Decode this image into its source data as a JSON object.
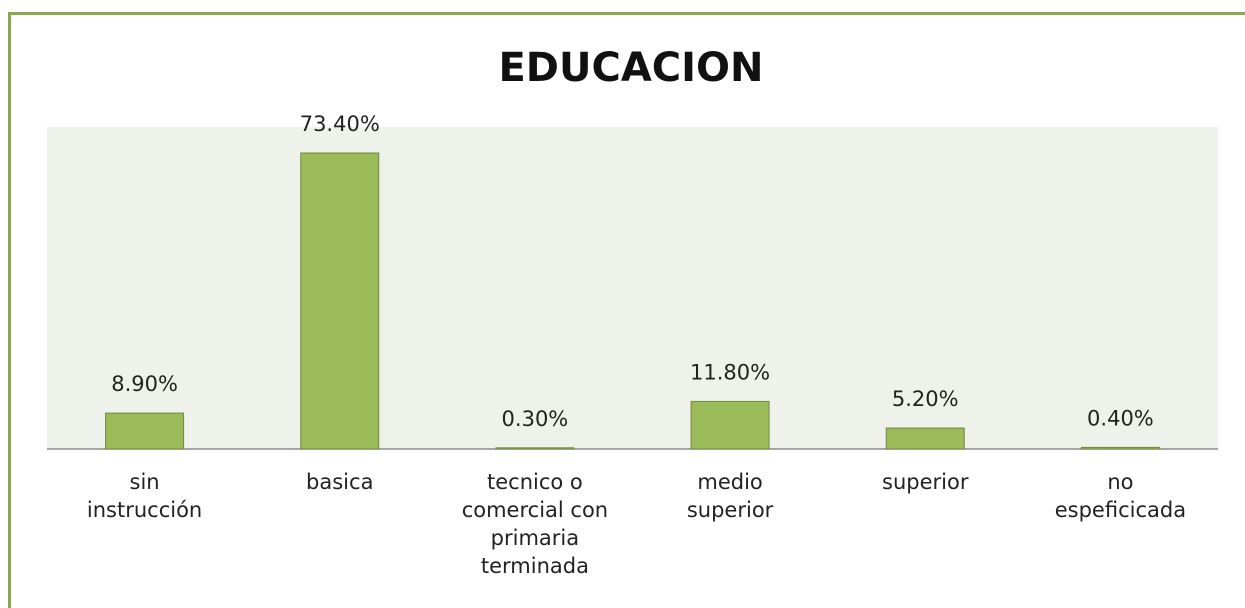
{
  "chart_data": {
    "type": "bar",
    "title": "EDUCACION",
    "categories": [
      "sin instrucción",
      "basica",
      "tecnico o comercial con primaria terminada",
      "medio superior",
      "superior",
      "no espeficicada"
    ],
    "values": [
      8.9,
      73.4,
      0.3,
      11.8,
      5.2,
      0.4
    ],
    "value_labels": [
      "8.90%",
      "73.40%",
      "0.30%",
      "11.80%",
      "5.20%",
      "0.40%"
    ],
    "color": "#9bbb59"
  }
}
